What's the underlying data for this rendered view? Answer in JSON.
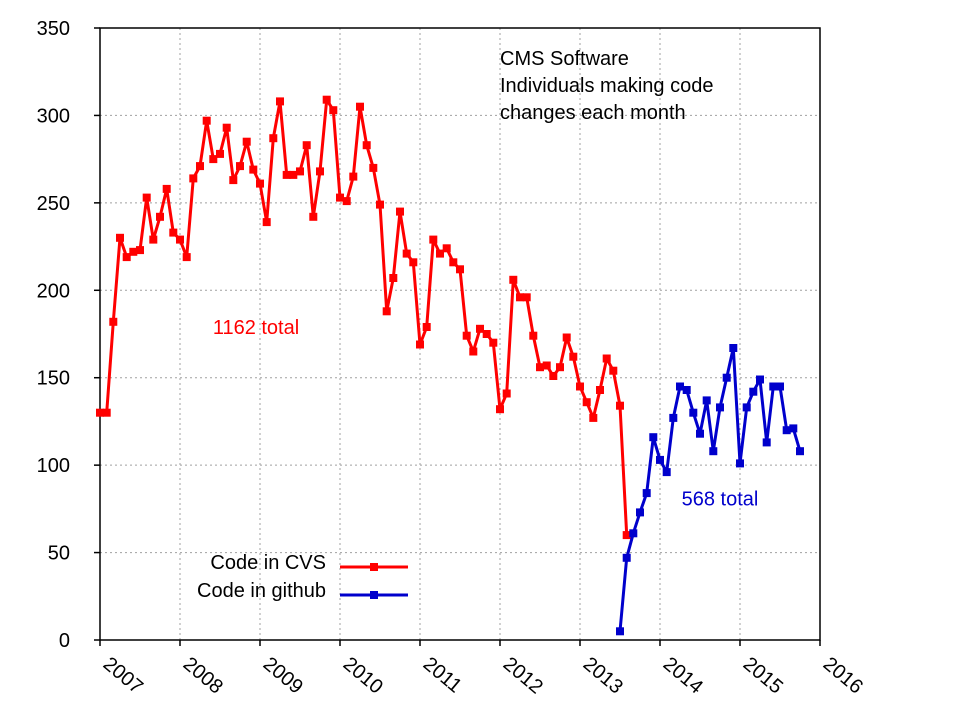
{
  "chart_data": {
    "type": "line",
    "title_lines": [
      "CMS Software",
      "Individuals making code",
      "changes each month"
    ],
    "xlabel": "",
    "ylabel": "",
    "xlim": [
      2007,
      2016
    ],
    "ylim": [
      0,
      350
    ],
    "x_ticks": [
      2007,
      2008,
      2009,
      2010,
      2011,
      2012,
      2013,
      2014,
      2015,
      2016
    ],
    "y_ticks": [
      0,
      50,
      100,
      150,
      200,
      250,
      300,
      350
    ],
    "grid": true,
    "legend_position": "bottom-left",
    "colors": {
      "cvs": "#ff0000",
      "github": "#0000cc"
    },
    "annotations": [
      {
        "text": "1162 total",
        "x": 2008.95,
        "y": 175,
        "color": "#ff0000"
      },
      {
        "text": "568 total",
        "x": 2014.75,
        "y": 77,
        "color": "#0000cc"
      }
    ],
    "series": [
      {
        "name": "Code in CVS",
        "x_start": 2007.0,
        "x_step_months": 1,
        "values": [
          130,
          130,
          182,
          230,
          219,
          222,
          223,
          253,
          229,
          242,
          258,
          233,
          229,
          219,
          264,
          271,
          297,
          275,
          278,
          293,
          263,
          271,
          285,
          269,
          261,
          239,
          287,
          308,
          266,
          266,
          268,
          283,
          242,
          268,
          309,
          303,
          253,
          251,
          265,
          305,
          283,
          270,
          249,
          188,
          207,
          245,
          221,
          216,
          169,
          179,
          229,
          221,
          224,
          216,
          212,
          174,
          165,
          178,
          175,
          170,
          132,
          141,
          206,
          196,
          196,
          174,
          156,
          157,
          151,
          156,
          173,
          162,
          145,
          136,
          127,
          143,
          161,
          154,
          134,
          60
        ]
      },
      {
        "name": "Code in github",
        "x_start": 2013.5,
        "x_step_months": 1,
        "values": [
          5,
          47,
          61,
          73,
          84,
          116,
          103,
          96,
          127,
          145,
          143,
          130,
          118,
          137,
          108,
          133,
          150,
          167,
          101,
          133,
          142,
          149,
          113,
          145,
          145,
          120,
          121,
          108
        ]
      }
    ]
  }
}
